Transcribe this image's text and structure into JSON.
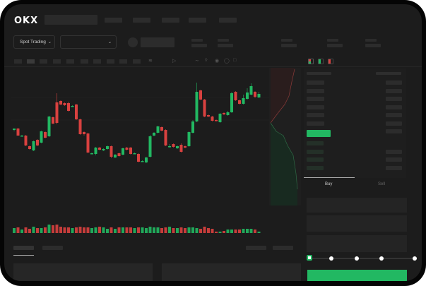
{
  "header": {
    "logo": "OKX"
  },
  "market_selector": {
    "label": "Spot Trading",
    "chevron": "chevron-down-icon"
  },
  "pair_selector": {
    "value": "",
    "chevron": "chevron-down-icon"
  },
  "order_panel": {
    "tabs": [
      {
        "label": "Buy",
        "active": true
      },
      {
        "label": "Sell",
        "active": false
      }
    ],
    "slider_percent": 0,
    "slider_stops": [
      0,
      25,
      50,
      75,
      100
    ]
  },
  "colors": {
    "up": "#22b862",
    "down": "#d9413f",
    "background": "#1c1c1c",
    "accent": "#22b862"
  },
  "candles": [
    [
      56,
      58,
      58,
      54
    ],
    [
      58,
      48,
      59,
      48
    ],
    [
      48,
      48,
      49,
      47
    ],
    [
      48,
      34,
      49,
      33
    ],
    [
      33,
      29,
      34,
      28
    ],
    [
      27,
      40,
      41,
      26
    ],
    [
      42,
      34,
      43,
      33
    ],
    [
      38,
      54,
      55,
      37
    ],
    [
      53,
      45,
      54,
      44
    ],
    [
      47,
      75,
      76,
      46
    ],
    [
      74,
      65,
      75,
      64
    ],
    [
      95,
      66,
      108,
      64
    ],
    [
      97,
      92,
      98,
      91
    ],
    [
      94,
      91,
      95,
      90
    ],
    [
      94,
      83,
      96,
      82
    ],
    [
      90,
      90,
      91,
      89
    ],
    [
      92,
      71,
      93,
      70
    ],
    [
      71,
      50,
      72,
      49
    ],
    [
      53,
      50,
      54,
      48
    ],
    [
      51,
      24,
      52,
      23
    ],
    [
      23,
      23,
      24,
      22
    ],
    [
      22,
      31,
      32,
      20
    ],
    [
      31,
      28,
      32,
      27
    ],
    [
      27,
      29,
      30,
      26
    ],
    [
      29,
      33,
      34,
      28
    ],
    [
      33,
      18,
      34,
      16
    ],
    [
      17,
      21,
      22,
      16
    ],
    [
      23,
      19,
      24,
      18
    ],
    [
      21,
      30,
      31,
      20
    ],
    [
      31,
      28,
      32,
      27
    ],
    [
      31,
      22,
      32,
      21
    ],
    [
      23,
      23,
      24,
      22
    ],
    [
      22,
      11,
      23,
      10
    ],
    [
      12,
      12,
      13,
      11
    ],
    [
      10,
      17,
      18,
      9
    ],
    [
      18,
      47,
      49,
      17
    ],
    [
      48,
      52,
      53,
      47
    ],
    [
      52,
      61,
      62,
      51
    ],
    [
      60,
      55,
      61,
      54
    ],
    [
      56,
      34,
      57,
      33
    ],
    [
      33,
      33,
      36,
      31
    ],
    [
      36,
      32,
      37,
      31
    ],
    [
      30,
      33,
      34,
      29
    ],
    [
      35,
      25,
      37,
      24
    ],
    [
      33,
      31,
      34,
      30
    ],
    [
      33,
      53,
      54,
      32
    ],
    [
      52,
      68,
      70,
      51
    ],
    [
      68,
      110,
      123,
      67
    ],
    [
      112,
      99,
      113,
      98
    ],
    [
      99,
      75,
      100,
      74
    ],
    [
      77,
      75,
      78,
      74
    ],
    [
      75,
      69,
      76,
      68
    ],
    [
      70,
      69,
      71,
      68
    ],
    [
      67,
      79,
      80,
      66
    ],
    [
      80,
      78,
      81,
      77
    ],
    [
      77,
      81,
      83,
      76
    ],
    [
      81,
      108,
      110,
      80
    ],
    [
      110,
      98,
      111,
      97
    ],
    [
      98,
      93,
      99,
      92
    ],
    [
      93,
      101,
      106,
      92
    ],
    [
      100,
      109,
      115,
      99
    ],
    [
      106,
      118,
      122,
      105
    ],
    [
      110,
      103,
      111,
      101
    ],
    [
      102,
      107,
      110,
      101
    ]
  ],
  "volumes": [
    7,
    8,
    5,
    8,
    6,
    9,
    7,
    7,
    8,
    12,
    11,
    12,
    9,
    8,
    8,
    7,
    8,
    9,
    8,
    8,
    7,
    8,
    9,
    8,
    6,
    8,
    6,
    8,
    8,
    8,
    8,
    7,
    8,
    8,
    7,
    9,
    8,
    8,
    7,
    8,
    9,
    7,
    7,
    8,
    7,
    8,
    8,
    7,
    6,
    9,
    7,
    6,
    2,
    2,
    3,
    5,
    5,
    5,
    5,
    6,
    6,
    6,
    5,
    2
  ]
}
